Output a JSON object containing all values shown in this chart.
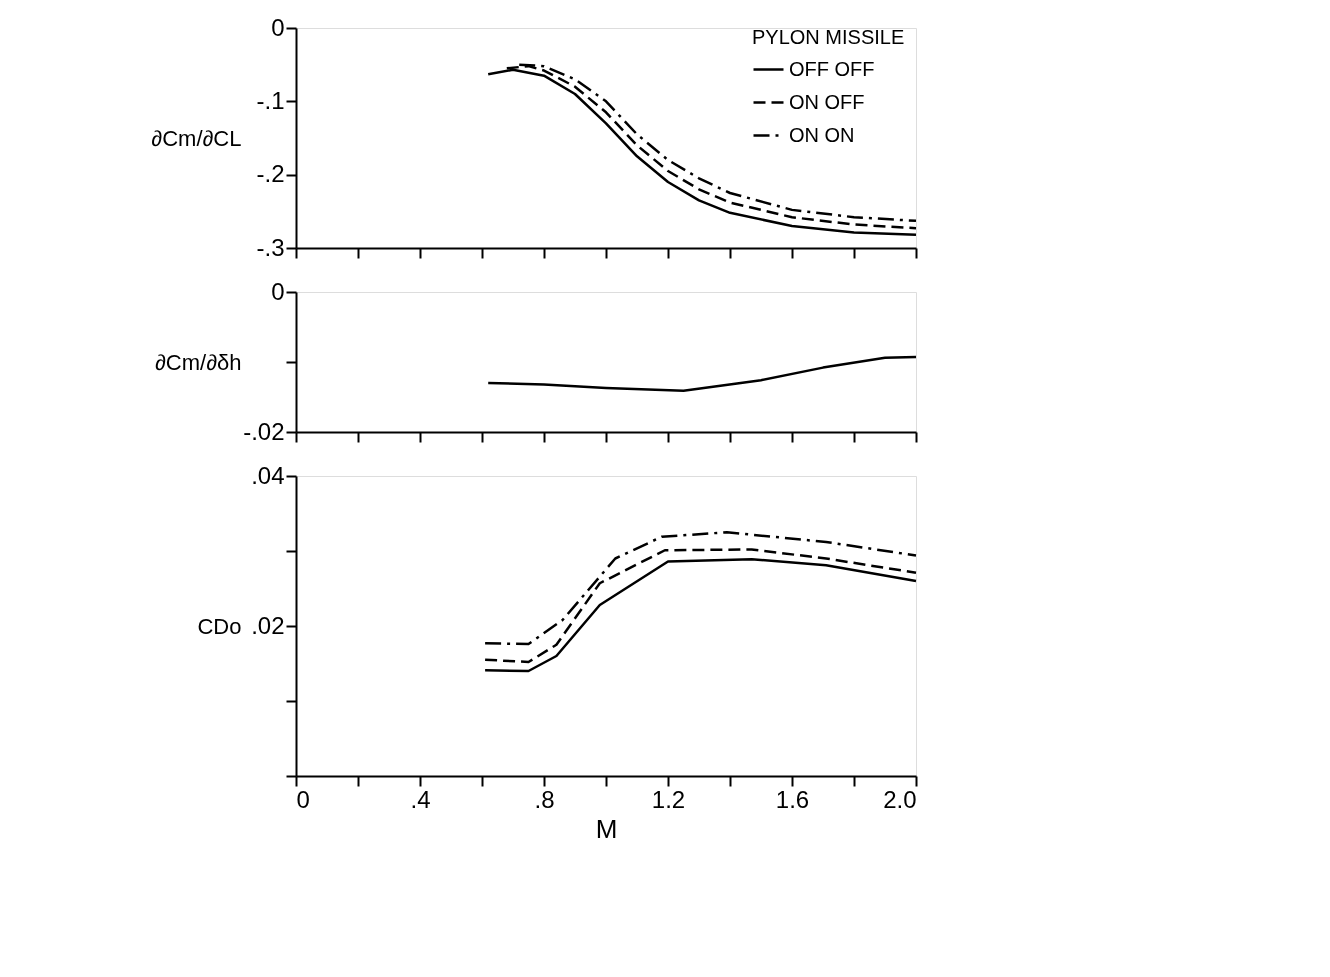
{
  "chart_data": [
    {
      "type": "line",
      "ylabel": "∂Cm/∂CL",
      "legend_title": "PYLON   MISSILE",
      "legend": "top right",
      "tick_labels": "y",
      "xlim": [
        0,
        2.0
      ],
      "xticks": [
        {
          "value": 0,
          "label": null
        },
        {
          "value": 0.2,
          "label": null
        },
        {
          "value": 0.4,
          "label": null
        },
        {
          "value": 0.6,
          "label": null
        },
        {
          "value": 0.8,
          "label": null
        },
        {
          "value": 1.0,
          "label": null
        },
        {
          "value": 1.2,
          "label": null
        },
        {
          "value": 1.4,
          "label": null
        },
        {
          "value": 1.6,
          "label": null
        },
        {
          "value": 1.8,
          "label": null
        },
        {
          "value": 2.0,
          "label": null
        }
      ],
      "ylim": [
        -0.3,
        0
      ],
      "yticks": [
        {
          "value": 0,
          "label": "0"
        },
        {
          "value": -0.1,
          "label": "-.1"
        },
        {
          "value": -0.2,
          "label": "-.2"
        },
        {
          "value": -0.3,
          "label": "-.3"
        }
      ],
      "series": [
        {
          "name": "OFF   OFF",
          "color": "#000000",
          "line_style": "solid",
          "x": [
            0.62,
            0.7,
            0.8,
            0.9,
            1.0,
            1.1,
            1.2,
            1.3,
            1.4,
            1.6,
            1.8,
            2.0
          ],
          "values": [
            -0.063,
            -0.057,
            -0.065,
            -0.09,
            -0.13,
            -0.175,
            -0.21,
            -0.235,
            -0.252,
            -0.27,
            -0.279,
            -0.282
          ]
        },
        {
          "name": "ON   OFF",
          "color": "#000000",
          "line_style": "dashed",
          "x": [
            0.68,
            0.75,
            0.8,
            0.9,
            1.0,
            1.1,
            1.2,
            1.3,
            1.4,
            1.6,
            1.8,
            2.0
          ],
          "values": [
            -0.055,
            -0.052,
            -0.058,
            -0.08,
            -0.115,
            -0.16,
            -0.195,
            -0.22,
            -0.238,
            -0.258,
            -0.268,
            -0.273
          ]
        },
        {
          "name": "ON   ON",
          "color": "#000000",
          "line_style": "dashdot",
          "x": [
            0.72,
            0.8,
            0.9,
            1.0,
            1.1,
            1.2,
            1.3,
            1.4,
            1.6,
            1.8,
            2.0
          ],
          "values": [
            -0.05,
            -0.052,
            -0.07,
            -0.1,
            -0.145,
            -0.18,
            -0.205,
            -0.225,
            -0.248,
            -0.258,
            -0.263
          ]
        }
      ]
    },
    {
      "type": "line",
      "ylabel": "∂Cm/∂δh",
      "tick_labels": "y",
      "xlim": [
        0,
        2.0
      ],
      "xticks": [
        {
          "value": 0,
          "label": null
        },
        {
          "value": 0.2,
          "label": null
        },
        {
          "value": 0.4,
          "label": null
        },
        {
          "value": 0.6,
          "label": null
        },
        {
          "value": 0.8,
          "label": null
        },
        {
          "value": 1.0,
          "label": null
        },
        {
          "value": 1.2,
          "label": null
        },
        {
          "value": 1.4,
          "label": null
        },
        {
          "value": 1.6,
          "label": null
        },
        {
          "value": 1.8,
          "label": null
        },
        {
          "value": 2.0,
          "label": null
        }
      ],
      "ylim": [
        -0.02,
        0
      ],
      "yticks": [
        {
          "value": 0,
          "label": "0"
        },
        {
          "value": -0.01,
          "label": null
        },
        {
          "value": -0.02,
          "label": "-.02"
        }
      ],
      "series": [
        {
          "color": "#000000",
          "line_style": "solid",
          "x": [
            0.62,
            0.8,
            1.0,
            1.25,
            1.5,
            1.7,
            1.9,
            2.0
          ],
          "values": [
            -0.013,
            -0.0132,
            -0.0137,
            -0.0141,
            -0.0126,
            -0.0108,
            -0.0094,
            -0.0093
          ]
        }
      ]
    },
    {
      "type": "line",
      "ylabel": "CDo",
      "xlabel": "M",
      "xlim": [
        0,
        2.0
      ],
      "xticks": [
        {
          "value": 0,
          "label": "0"
        },
        {
          "value": 0.2,
          "label": null
        },
        {
          "value": 0.4,
          "label": ".4"
        },
        {
          "value": 0.6,
          "label": null
        },
        {
          "value": 0.8,
          "label": ".8"
        },
        {
          "value": 1.0,
          "label": null
        },
        {
          "value": 1.2,
          "label": "1.2"
        },
        {
          "value": 1.4,
          "label": null
        },
        {
          "value": 1.6,
          "label": "1.6"
        },
        {
          "value": 1.8,
          "label": null
        },
        {
          "value": 2.0,
          "label": "2.0"
        }
      ],
      "ylim": [
        0,
        0.04
      ],
      "yticks": [
        {
          "value": 0,
          "label": null
        },
        {
          "value": 0.01,
          "label": null
        },
        {
          "value": 0.02,
          "label": ".02"
        },
        {
          "value": 0.03,
          "label": null
        },
        {
          "value": 0.04,
          "label": ".04"
        }
      ],
      "series": [
        {
          "color": "#000000",
          "line_style": "solid",
          "x": [
            0.61,
            0.75,
            0.84,
            0.98,
            1.2,
            1.47,
            1.71,
            2.0
          ],
          "values": [
            0.0141,
            0.014,
            0.016,
            0.0228,
            0.0286,
            0.0289,
            0.0281,
            0.026
          ]
        },
        {
          "color": "#000000",
          "line_style": "dashed",
          "x": [
            0.61,
            0.75,
            0.84,
            0.98,
            1.19,
            1.47,
            1.71,
            2.0
          ],
          "values": [
            0.0155,
            0.0152,
            0.0175,
            0.0257,
            0.0301,
            0.0302,
            0.029,
            0.0271
          ]
        },
        {
          "color": "#000000",
          "line_style": "dashdot",
          "x": [
            0.61,
            0.75,
            0.86,
            1.03,
            1.18,
            1.39,
            1.71,
            2.0
          ],
          "values": [
            0.0177,
            0.0176,
            0.0208,
            0.029,
            0.0319,
            0.0325,
            0.0312,
            0.0294
          ]
        }
      ]
    }
  ]
}
